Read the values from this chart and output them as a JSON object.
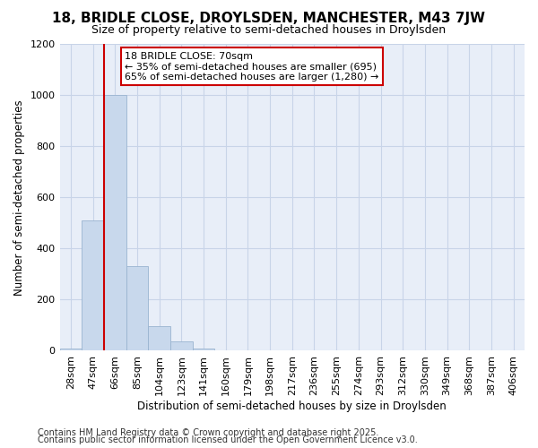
{
  "title": "18, BRIDLE CLOSE, DROYLSDEN, MANCHESTER, M43 7JW",
  "subtitle": "Size of property relative to semi-detached houses in Droylsden",
  "xlabel": "Distribution of semi-detached houses by size in Droylsden",
  "ylabel": "Number of semi-detached properties",
  "categories": [
    "28sqm",
    "47sqm",
    "66sqm",
    "85sqm",
    "104sqm",
    "123sqm",
    "141sqm",
    "160sqm",
    "179sqm",
    "198sqm",
    "217sqm",
    "236sqm",
    "255sqm",
    "274sqm",
    "293sqm",
    "312sqm",
    "330sqm",
    "349sqm",
    "368sqm",
    "387sqm",
    "406sqm"
  ],
  "values": [
    10,
    510,
    1000,
    330,
    95,
    35,
    10,
    0,
    0,
    0,
    0,
    0,
    0,
    0,
    0,
    0,
    0,
    0,
    0,
    0,
    0
  ],
  "bar_color": "#c8d8ec",
  "bar_edge_color": "#9ab4d0",
  "red_line_x": 1.5,
  "annotation_text_line1": "18 BRIDLE CLOSE: 70sqm",
  "annotation_text_line2": "← 35% of semi-detached houses are smaller (695)",
  "annotation_text_line3": "65% of semi-detached houses are larger (1,280) →",
  "ylim": [
    0,
    1200
  ],
  "yticks": [
    0,
    200,
    400,
    600,
    800,
    1000,
    1200
  ],
  "grid_color": "#c8d4e8",
  "grid_bg_color": "#e8eef8",
  "fig_bg_color": "#ffffff",
  "annotation_box_facecolor": "#ffffff",
  "annotation_box_edgecolor": "#cc0000",
  "red_line_color": "#cc0000",
  "title_fontsize": 11,
  "subtitle_fontsize": 9,
  "axis_label_fontsize": 8.5,
  "tick_fontsize": 8,
  "annotation_fontsize": 8,
  "footer_fontsize": 7,
  "footer1": "Contains HM Land Registry data © Crown copyright and database right 2025.",
  "footer2": "Contains public sector information licensed under the Open Government Licence v3.0."
}
